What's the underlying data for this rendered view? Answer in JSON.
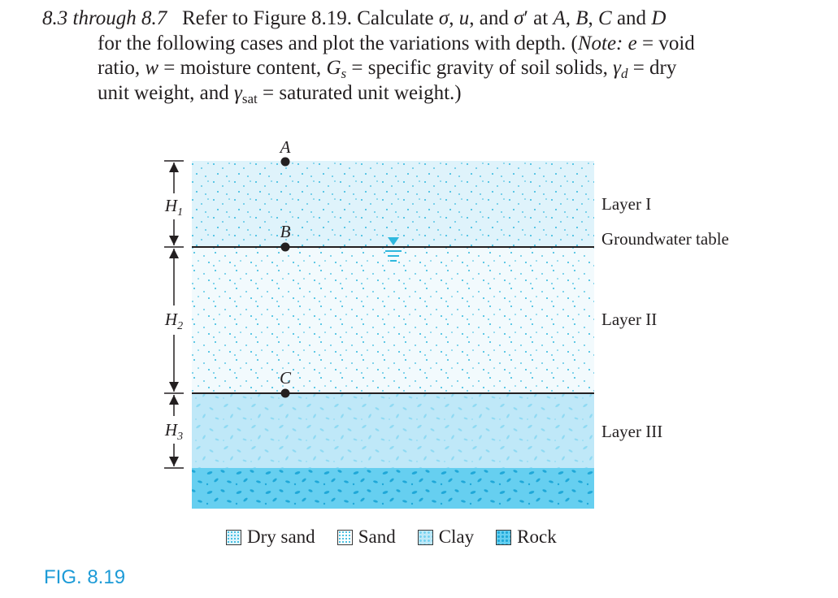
{
  "problem": {
    "number": "8.3 through 8.7",
    "line1": "Refer to Figure 8.19. Calculate σ, u, and σ′ at A, B, C and D",
    "line2": "for the following cases and plot the variations with depth. (Note: e = void",
    "line3": "ratio, w = moisture content, Gs = specific gravity of soil solids, γd = dry",
    "line4": "unit weight, and γsat = saturated unit weight.)"
  },
  "figure": {
    "caption": "FIG. 8.19",
    "points": {
      "a": "A",
      "b": "B",
      "c": "C"
    },
    "dimensions": {
      "h1": "H1",
      "h2": "H2",
      "h3": "H3"
    },
    "layers": {
      "layer1": "Layer I",
      "gwt": "Groundwater table",
      "layer2": "Layer II",
      "layer3": "Layer III"
    },
    "legend": [
      {
        "label": "Dry sand"
      },
      {
        "label": "Sand"
      },
      {
        "label": "Clay"
      },
      {
        "label": "Rock"
      }
    ],
    "colors": {
      "dry_sand": "#dff3fb",
      "sand": "#f2fafd",
      "clay": "#bfe8f8",
      "rock": "#66cff0",
      "dots": "#2fb8de",
      "caption": "#1d9bd7"
    }
  }
}
